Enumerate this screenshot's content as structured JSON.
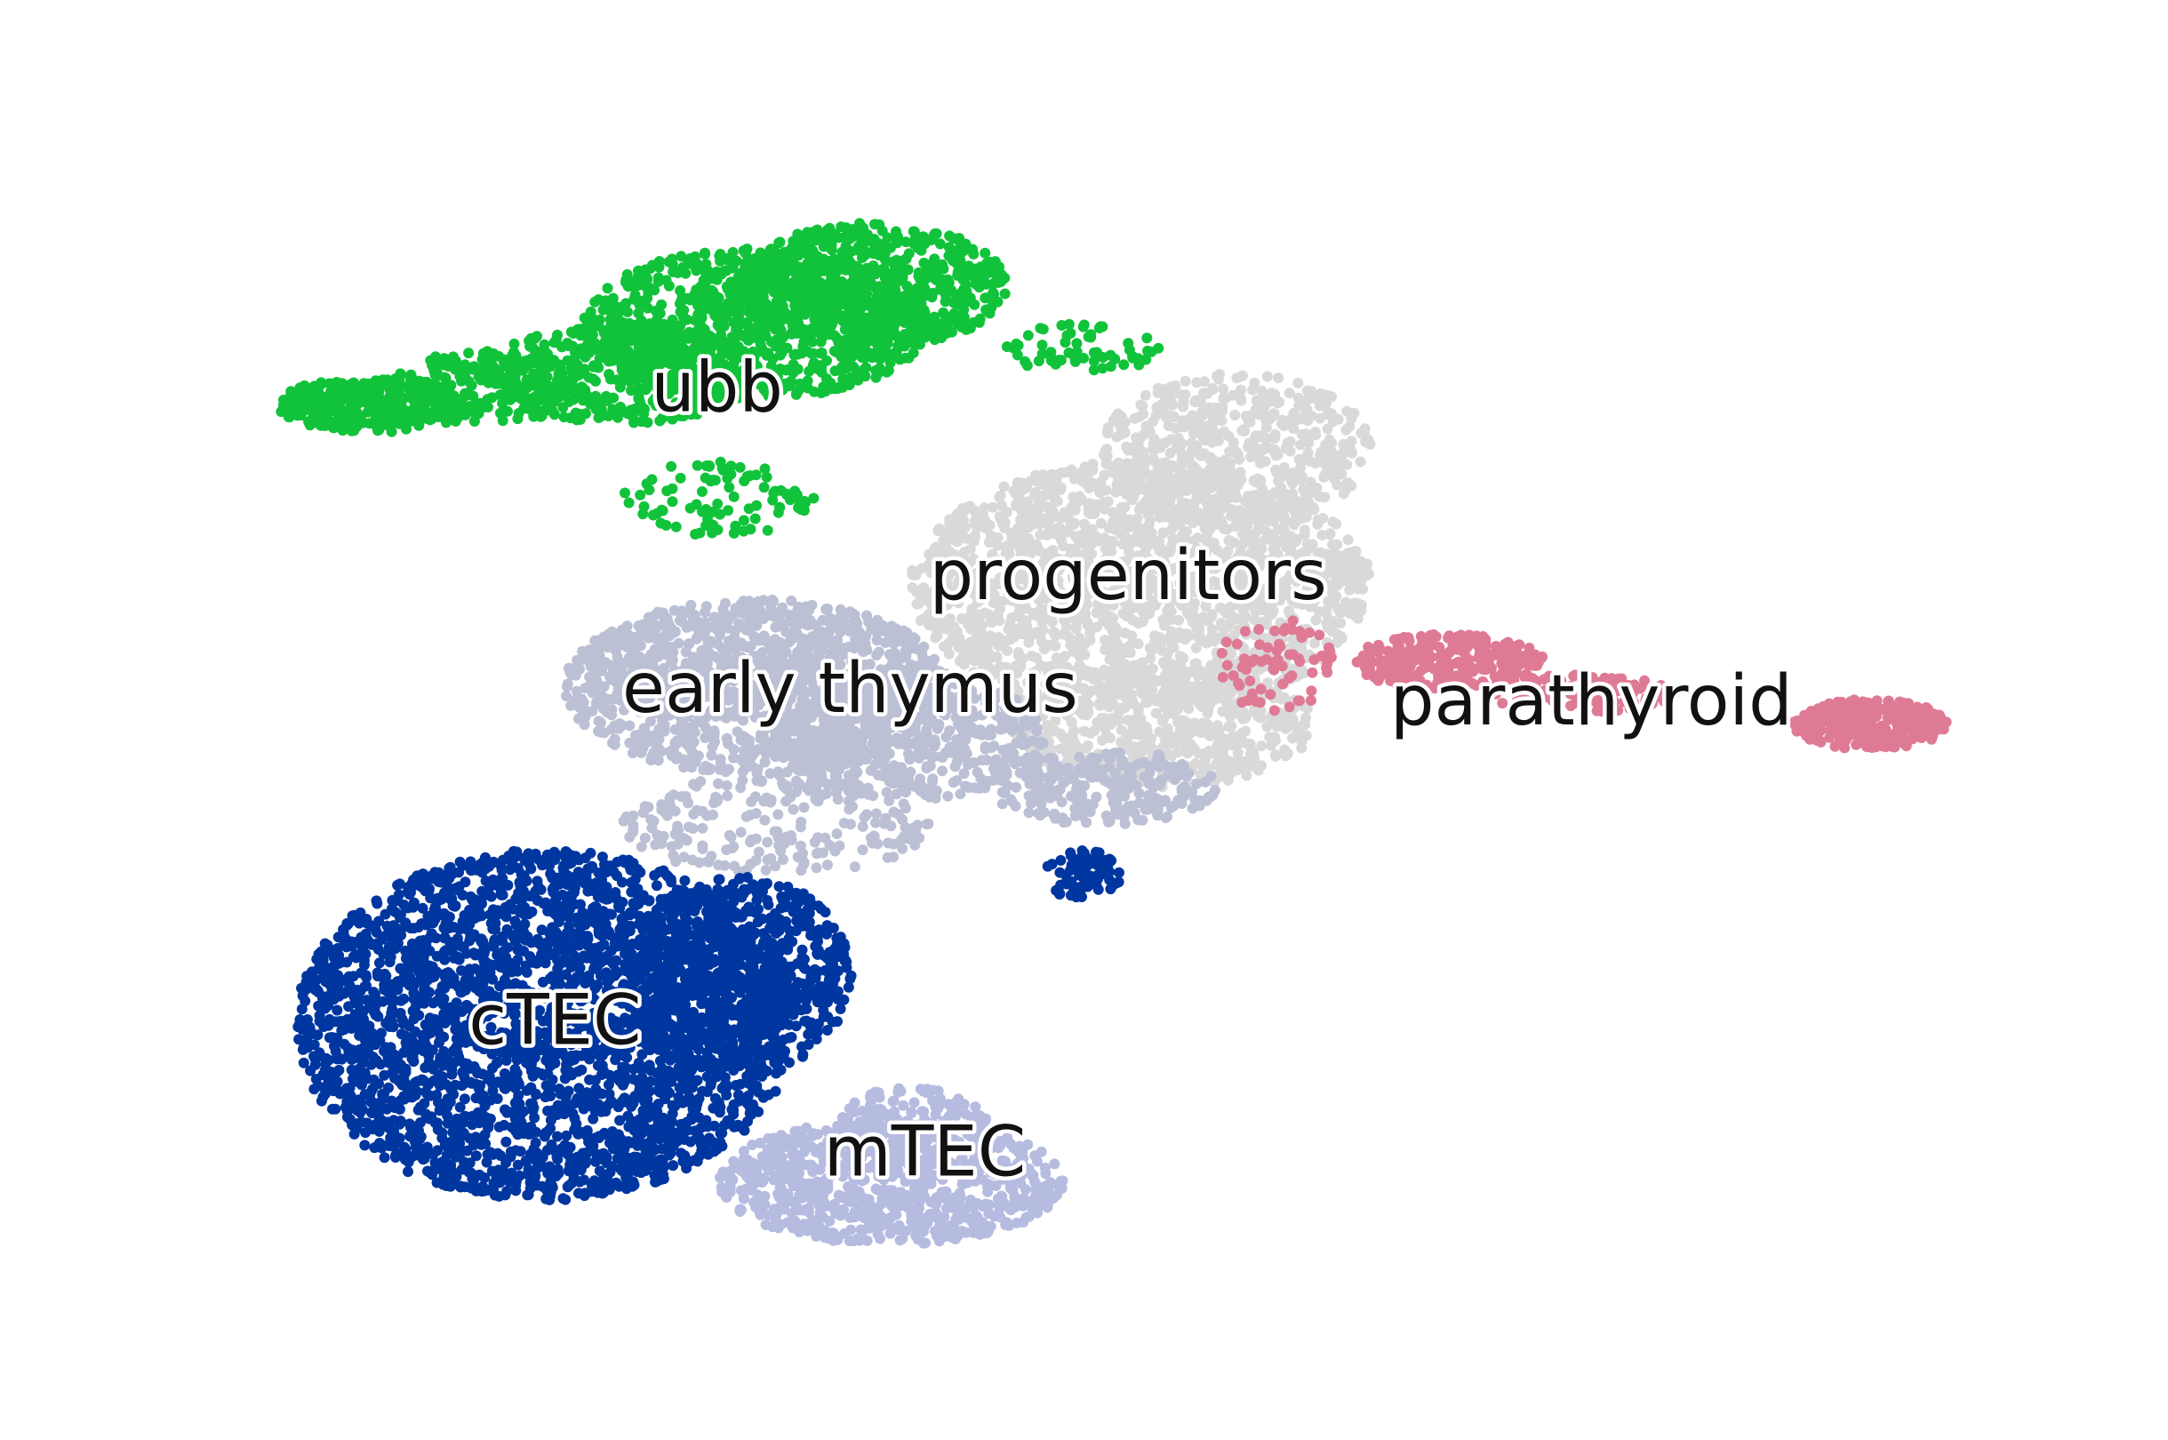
{
  "chart_data": {
    "type": "scatter",
    "title": "",
    "xlabel": "",
    "ylabel": "",
    "grid": false,
    "axes_visible": false,
    "legend": "on data",
    "xlim": [
      0,
      100
    ],
    "ylim": [
      0,
      100
    ],
    "series": [
      {
        "name": "ubb",
        "color": "#11c33a",
        "label_pos": [
          26.5,
          75
        ],
        "lobes": [
          {
            "cx": 32,
            "cy": 82,
            "rx": 9,
            "ry": 6,
            "n": 900
          },
          {
            "cx": 38,
            "cy": 85,
            "rx": 7,
            "ry": 5,
            "n": 600
          },
          {
            "cx": 25,
            "cy": 78,
            "rx": 7,
            "ry": 4,
            "n": 380
          },
          {
            "cx": 18,
            "cy": 77,
            "rx": 5,
            "ry": 3,
            "n": 220
          },
          {
            "cx": 12,
            "cy": 75.5,
            "rx": 5,
            "ry": 2.2,
            "n": 320
          },
          {
            "cx": 30,
            "cy": 68,
            "rx": 5,
            "ry": 3,
            "n": 90
          },
          {
            "cx": 49,
            "cy": 80,
            "rx": 4,
            "ry": 2,
            "n": 60
          }
        ]
      },
      {
        "name": "progenitors",
        "color": "#d9d9d9",
        "label_pos": [
          41,
          60
        ],
        "lobes": [
          {
            "cx": 52,
            "cy": 61,
            "rx": 12,
            "ry": 10,
            "n": 1900
          },
          {
            "cx": 57,
            "cy": 72,
            "rx": 7,
            "ry": 6,
            "n": 500
          },
          {
            "cx": 53,
            "cy": 50,
            "rx": 8,
            "ry": 5,
            "n": 500
          }
        ]
      },
      {
        "name": "early thymus",
        "color": "#bcc0d5",
        "label_pos": [
          25,
          51
        ],
        "lobes": [
          {
            "cx": 32,
            "cy": 53,
            "rx": 10,
            "ry": 7,
            "n": 1300
          },
          {
            "cx": 40,
            "cy": 49,
            "rx": 7,
            "ry": 5,
            "n": 500
          },
          {
            "cx": 50,
            "cy": 45,
            "rx": 6,
            "ry": 3,
            "n": 260
          },
          {
            "cx": 33,
            "cy": 42,
            "rx": 8,
            "ry": 4,
            "n": 220
          }
        ]
      },
      {
        "name": "parathyroid",
        "color": "#df7a95",
        "label_pos": [
          65,
          50
        ],
        "lobes": [
          {
            "cx": 68,
            "cy": 55,
            "rx": 5,
            "ry": 2.2,
            "n": 280
          },
          {
            "cx": 75,
            "cy": 52.5,
            "rx": 5,
            "ry": 1.5,
            "n": 130
          },
          {
            "cx": 90,
            "cy": 50,
            "rx": 4,
            "ry": 2,
            "n": 320
          },
          {
            "cx": 59,
            "cy": 55,
            "rx": 3,
            "ry": 4,
            "n": 70
          }
        ]
      },
      {
        "name": "cTEC",
        "color": "#0036a0",
        "label_pos": [
          17,
          24.5
        ],
        "lobes": [
          {
            "cx": 21,
            "cy": 26,
            "rx": 13,
            "ry": 14,
            "n": 2900
          },
          {
            "cx": 31,
            "cy": 30,
            "rx": 6,
            "ry": 8,
            "n": 700
          },
          {
            "cx": 49,
            "cy": 38,
            "rx": 2,
            "ry": 2,
            "n": 70
          }
        ]
      },
      {
        "name": "mTEC",
        "color": "#b6bbe0",
        "label_pos": [
          35.5,
          14
        ],
        "lobes": [
          {
            "cx": 39,
            "cy": 13.5,
            "rx": 9,
            "ry": 5,
            "n": 850
          },
          {
            "cx": 40,
            "cy": 18,
            "rx": 4,
            "ry": 3,
            "n": 150
          }
        ]
      }
    ]
  }
}
